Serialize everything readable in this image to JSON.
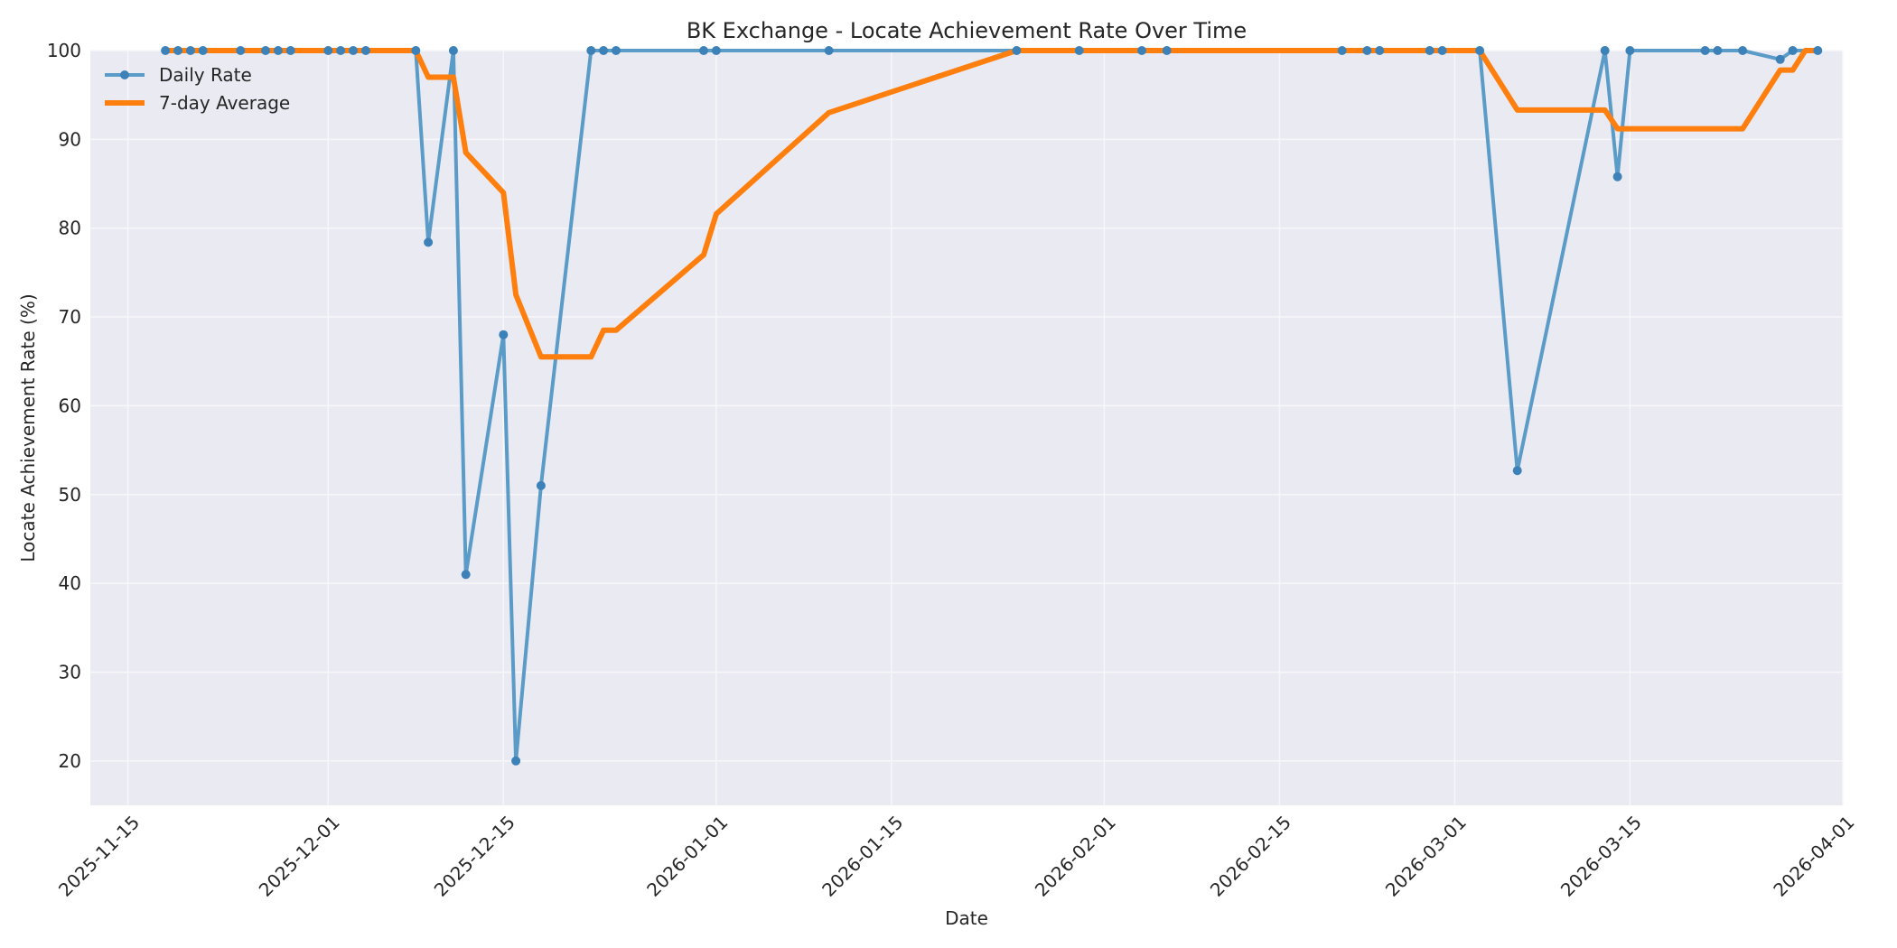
{
  "chart_data": {
    "type": "line",
    "title": "BK Exchange - Locate Achievement Rate Over Time",
    "xlabel": "Date",
    "ylabel": "Locate Achievement Rate (%)",
    "xlim": [
      "2025-11-12",
      "2026-04-01"
    ],
    "ylim": [
      15,
      100
    ],
    "yticks": [
      20,
      30,
      40,
      50,
      60,
      70,
      80,
      90,
      100
    ],
    "xticks": [
      "2025-11-15",
      "2025-12-01",
      "2025-12-15",
      "2026-01-01",
      "2026-01-15",
      "2026-02-01",
      "2026-02-15",
      "2026-03-01",
      "2026-03-15",
      "2026-04-01"
    ],
    "grid": true,
    "legend": {
      "position": "top-left"
    },
    "colors": {
      "daily": "#5b9bc8",
      "daily_marker": "#3c82b8",
      "avg": "#ff7f0e",
      "plot_bg": "#eaeaf2",
      "grid": "#f7f7fa"
    },
    "series": [
      {
        "name": "Daily Rate",
        "style": "line-marker",
        "points": [
          [
            "2025-11-18",
            100
          ],
          [
            "2025-11-19",
            100
          ],
          [
            "2025-11-20",
            100
          ],
          [
            "2025-11-21",
            100
          ],
          [
            "2025-11-24",
            100
          ],
          [
            "2025-11-26",
            100
          ],
          [
            "2025-11-27",
            100
          ],
          [
            "2025-11-28",
            100
          ],
          [
            "2025-12-01",
            100
          ],
          [
            "2025-12-02",
            100
          ],
          [
            "2025-12-03",
            100
          ],
          [
            "2025-12-04",
            100
          ],
          [
            "2025-12-08",
            100
          ],
          [
            "2025-12-09",
            78.4
          ],
          [
            "2025-12-11",
            100
          ],
          [
            "2025-12-12",
            41
          ],
          [
            "2025-12-15",
            68
          ],
          [
            "2025-12-16",
            20
          ],
          [
            "2025-12-18",
            51
          ],
          [
            "2025-12-22",
            100
          ],
          [
            "2025-12-23",
            100
          ],
          [
            "2025-12-24",
            100
          ],
          [
            "2025-12-31",
            100
          ],
          [
            "2026-01-01",
            100
          ],
          [
            "2026-01-10",
            100
          ],
          [
            "2026-01-25",
            100
          ],
          [
            "2026-01-30",
            100
          ],
          [
            "2026-02-04",
            100
          ],
          [
            "2026-02-06",
            100
          ],
          [
            "2026-02-20",
            100
          ],
          [
            "2026-02-22",
            100
          ],
          [
            "2026-02-23",
            100
          ],
          [
            "2026-02-27",
            100
          ],
          [
            "2026-02-28",
            100
          ],
          [
            "2026-03-03",
            100
          ],
          [
            "2026-03-06",
            52.7
          ],
          [
            "2026-03-13",
            100
          ],
          [
            "2026-03-14",
            85.8
          ],
          [
            "2026-03-15",
            100
          ],
          [
            "2026-03-21",
            100
          ],
          [
            "2026-03-22",
            100
          ],
          [
            "2026-03-24",
            100
          ],
          [
            "2026-03-27",
            99
          ],
          [
            "2026-03-28",
            100
          ],
          [
            "2026-03-30",
            100
          ]
        ]
      },
      {
        "name": "7-day Average",
        "style": "line",
        "points": [
          [
            "2025-11-18",
            100
          ],
          [
            "2025-12-08",
            100
          ],
          [
            "2025-12-09",
            97
          ],
          [
            "2025-12-11",
            97
          ],
          [
            "2025-12-12",
            88.5
          ],
          [
            "2025-12-15",
            84
          ],
          [
            "2025-12-16",
            72.5
          ],
          [
            "2025-12-18",
            65.5
          ],
          [
            "2025-12-22",
            65.5
          ],
          [
            "2025-12-23",
            68.5
          ],
          [
            "2025-12-24",
            68.5
          ],
          [
            "2025-12-31",
            77
          ],
          [
            "2026-01-01",
            81.6
          ],
          [
            "2026-01-10",
            93
          ],
          [
            "2026-01-25",
            100
          ],
          [
            "2026-03-03",
            100
          ],
          [
            "2026-03-06",
            93.3
          ],
          [
            "2026-03-13",
            93.3
          ],
          [
            "2026-03-14",
            91.2
          ],
          [
            "2026-03-24",
            91.2
          ],
          [
            "2026-03-27",
            97.8
          ],
          [
            "2026-03-28",
            97.8
          ],
          [
            "2026-03-29",
            100
          ],
          [
            "2026-03-30",
            100
          ]
        ]
      }
    ]
  }
}
